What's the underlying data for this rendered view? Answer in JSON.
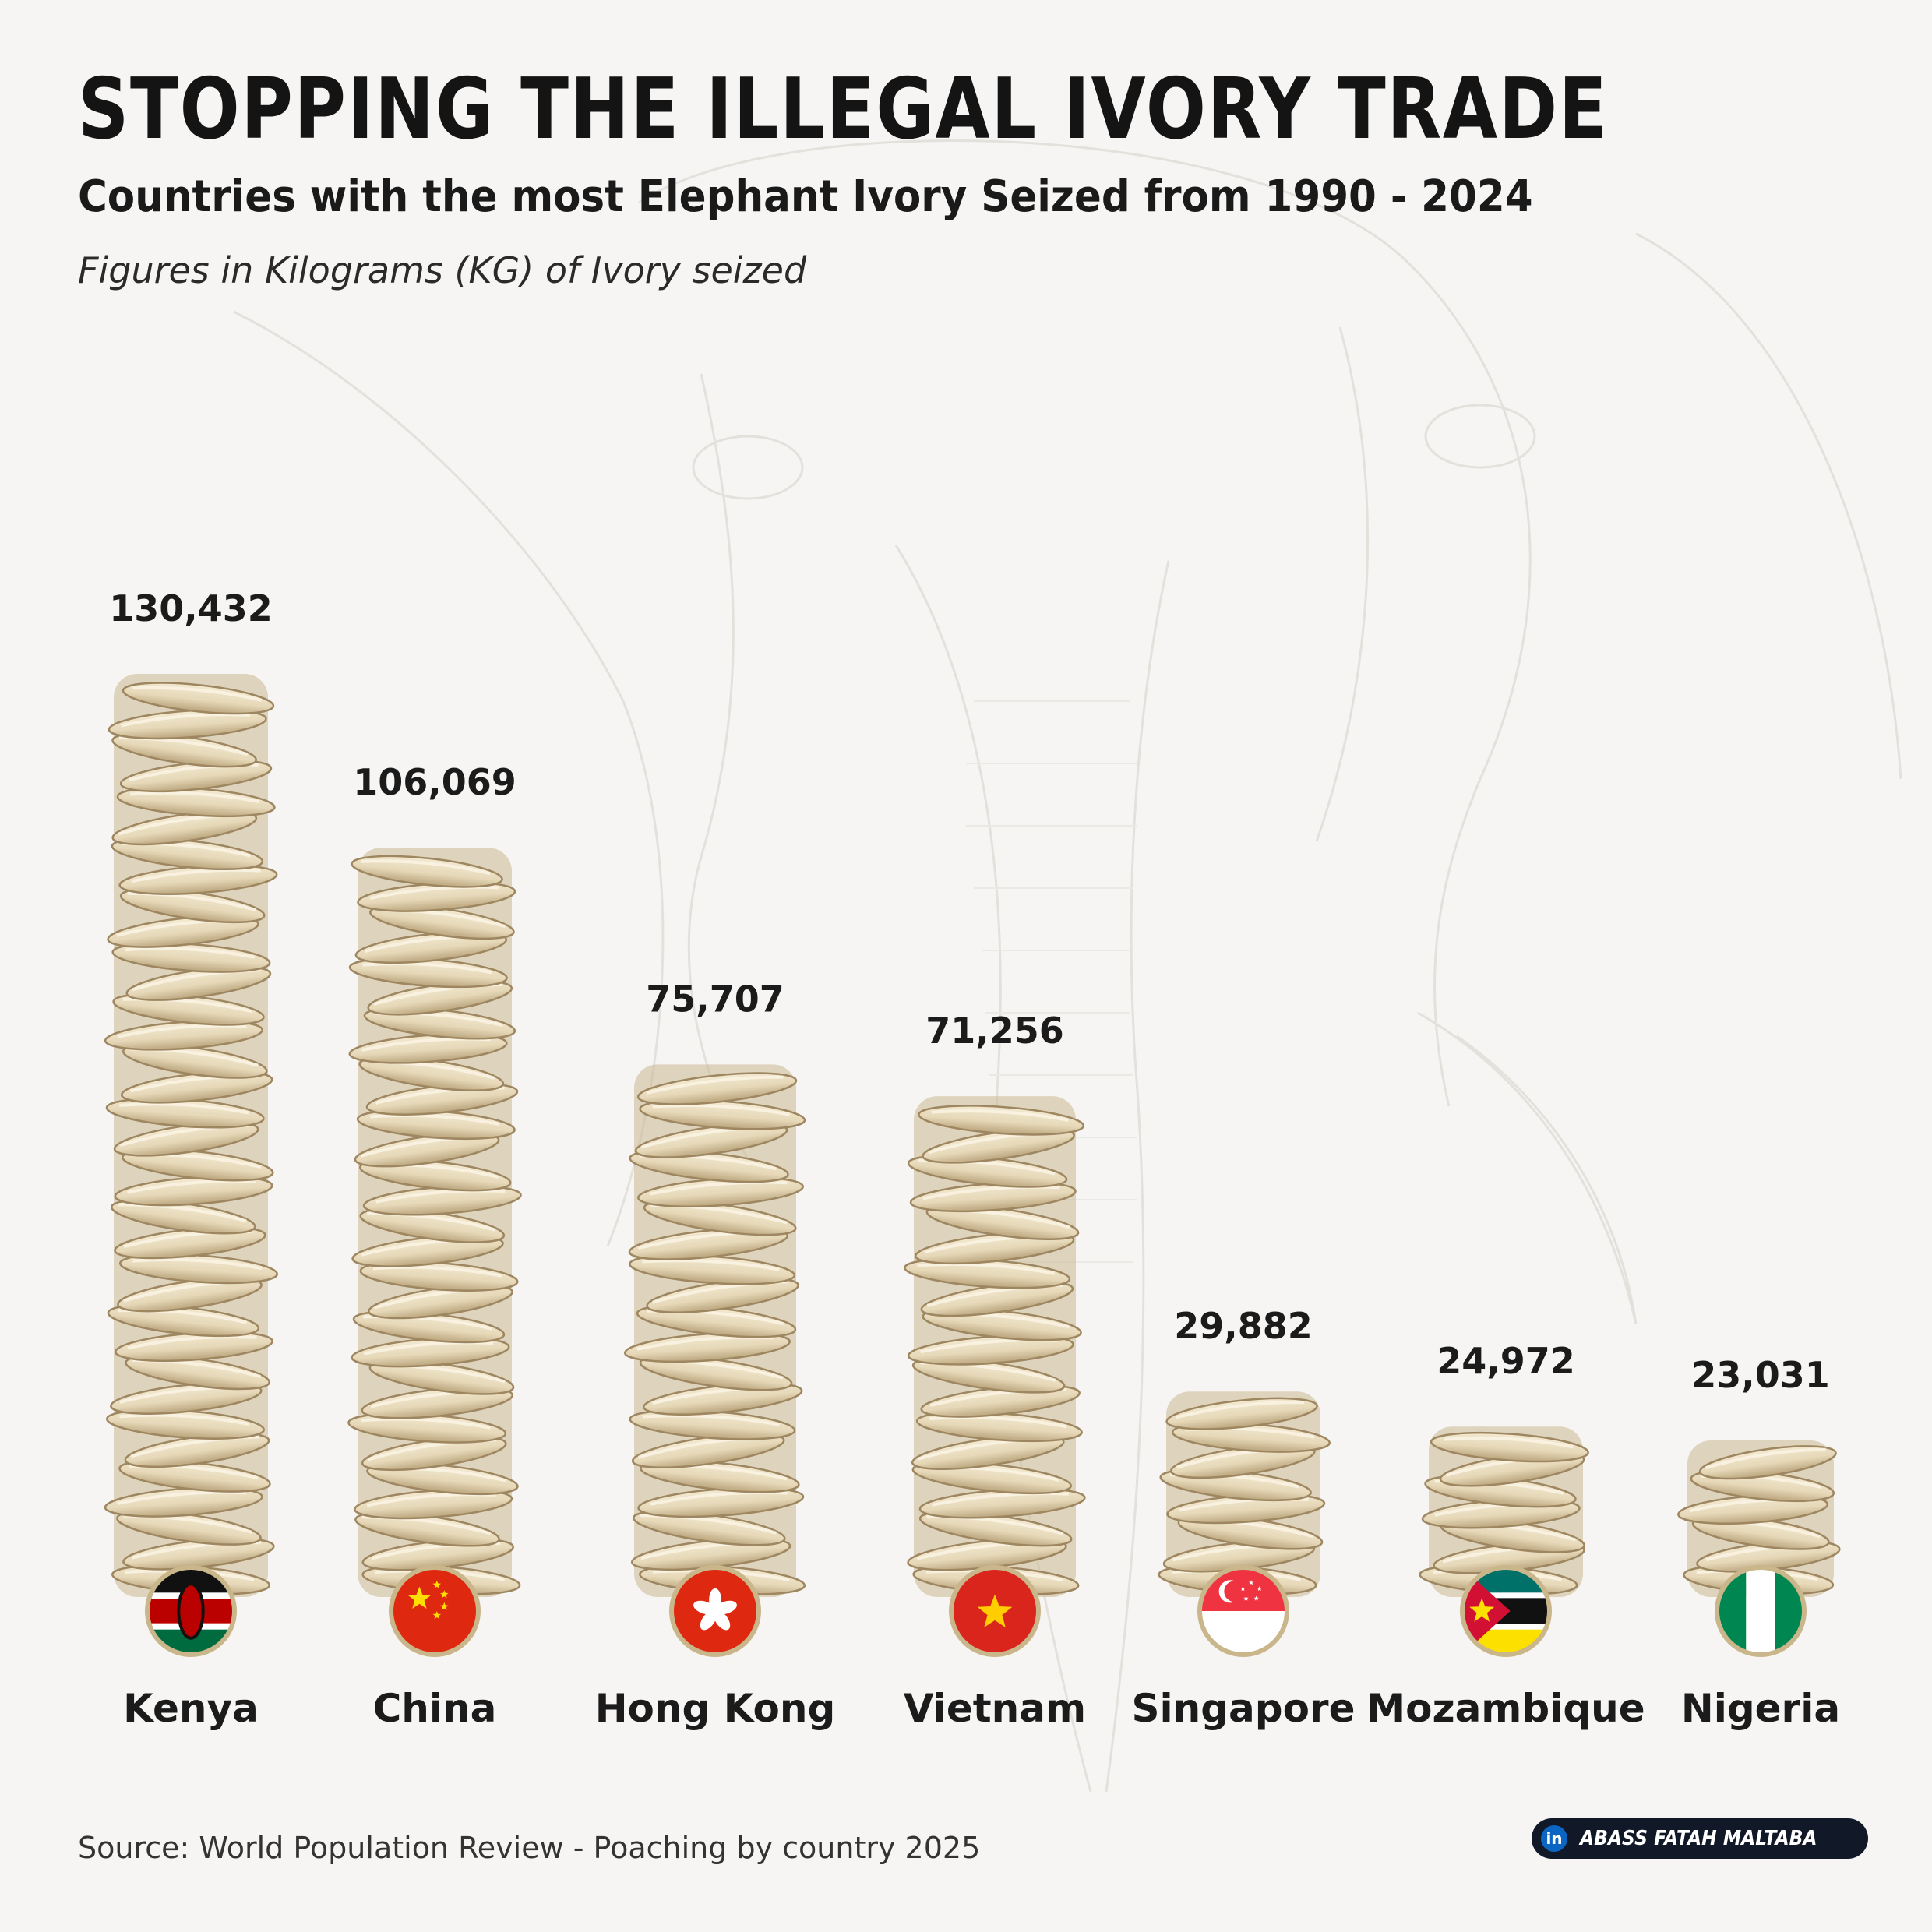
{
  "header": {
    "title": "STOPPING THE ILLEGAL IVORY TRADE",
    "subtitle": "Countries with the most Elephant Ivory Seized from 1990 - 2024",
    "note": "Figures in Kilograms (KG) of Ivory seized"
  },
  "footer": {
    "source": "Source: World Population Review - Poaching by country 2025",
    "credit": "ABASS FATAH MALTABA",
    "credit_icon": "linkedin-icon"
  },
  "colors": {
    "background": "#f6f5f3",
    "ivory": "#e6d8b8",
    "ivory_shadow": "#b9a47c",
    "text": "#1b1b1b"
  },
  "chart_data": {
    "type": "bar",
    "title": "STOPPING THE ILLEGAL IVORY TRADE",
    "subtitle": "Countries with the most Elephant Ivory Seized from 1990 - 2024",
    "ylabel": "Figures in Kilograms (KG) of Ivory seized",
    "xlabel": "",
    "categories": [
      "Kenya",
      "China",
      "Hong Kong",
      "Vietnam",
      "Singapore",
      "Mozambique",
      "Nigeria"
    ],
    "values": [
      130432,
      106069,
      75707,
      71256,
      29882,
      24972,
      23031
    ],
    "value_labels": [
      "130,432",
      "106,069",
      "75,707",
      "71,256",
      "29,882",
      "24,972",
      "23,031"
    ],
    "flags": [
      "kenya-flag",
      "china-flag",
      "hong-kong-flag",
      "vietnam-flag",
      "singapore-flag",
      "mozambique-flag",
      "nigeria-flag"
    ],
    "ylim": [
      0,
      140000
    ],
    "grid": false,
    "legend": "none",
    "bar_style": "stacked-ivory-tusks"
  }
}
